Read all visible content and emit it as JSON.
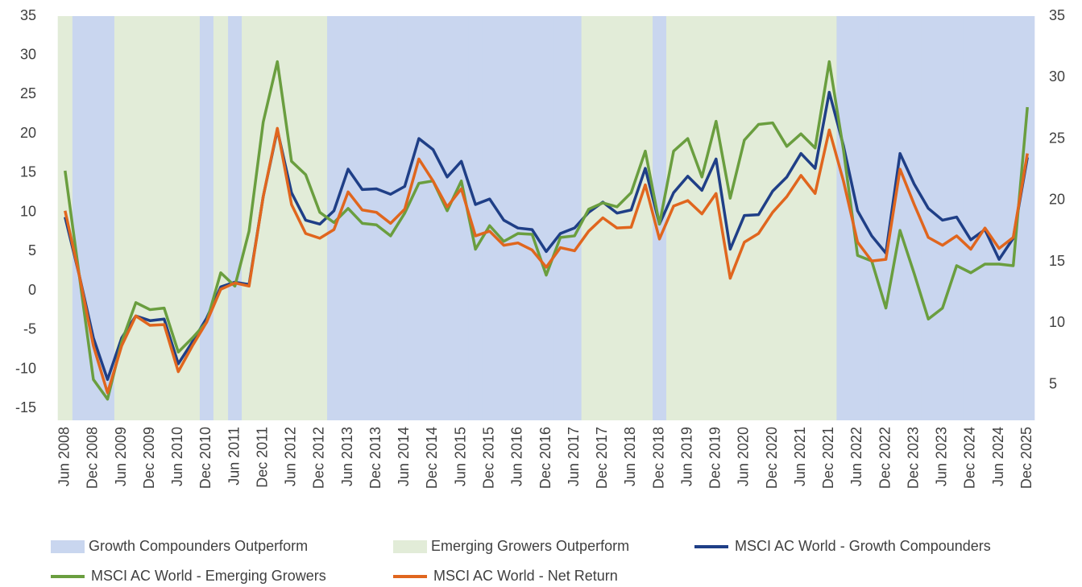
{
  "chart_data": {
    "type": "combo",
    "categories": [
      "Jun 2008",
      null,
      "Dec 2008",
      null,
      "Jun 2009",
      null,
      "Dec 2009",
      null,
      "Jun 2010",
      null,
      "Dec 2010",
      null,
      "Jun 2011",
      null,
      "Dec 2011",
      null,
      "Jun 2012",
      null,
      "Dec 2012",
      null,
      "Jun 2013",
      null,
      "Dec 2013",
      null,
      "Jun 2014",
      null,
      "Dec 2014",
      null,
      "Jun 2015",
      null,
      "Dec 2015",
      null,
      "Jun 2016",
      null,
      "Dec 2016",
      null,
      "Jun 2017",
      null,
      "Dec 2017",
      null,
      "Jun 2018",
      null,
      "Dec 2018",
      null,
      "Jun 2019",
      null,
      "Dec 2019",
      null,
      "Jun 2020",
      null,
      "Dec 2020",
      null,
      "Jun 2021",
      null,
      "Dec 2021",
      null,
      "Jun 2022",
      null,
      "Dec 2022",
      null,
      "Dec 2023",
      null,
      "Jun 2023",
      null,
      "Dec 2024",
      null,
      "Jun 2024",
      null,
      "Dec 2025"
    ],
    "ylim": [
      -16.5,
      35
    ],
    "yticks": [
      -15,
      -10,
      -5,
      0,
      5,
      10,
      15,
      20,
      25,
      30,
      35
    ],
    "y2lim": [
      2.1,
      35
    ],
    "y2ticks": [
      5,
      10,
      15,
      20,
      25,
      30,
      35
    ],
    "series": [
      {
        "name": "Growth Compounders Outperform",
        "type": "bar",
        "axis": "y2",
        "color": "#c9d6ef",
        "values": [
          null,
          35,
          35,
          35,
          null,
          null,
          null,
          null,
          null,
          null,
          35,
          null,
          35,
          null,
          null,
          null,
          null,
          null,
          null,
          35,
          35,
          35,
          35,
          35,
          35,
          35,
          35,
          35,
          35,
          35,
          35,
          35,
          35,
          35,
          35,
          35,
          35,
          null,
          null,
          null,
          null,
          null,
          35,
          null,
          null,
          null,
          null,
          null,
          null,
          null,
          null,
          null,
          null,
          null,
          null,
          35,
          35,
          35,
          35,
          35,
          35,
          35,
          35,
          35,
          35,
          35,
          35,
          35,
          35
        ]
      },
      {
        "name": "Emerging Growers Outperform",
        "type": "bar",
        "axis": "y2",
        "color": "#e2ecd8",
        "values": [
          35,
          null,
          null,
          null,
          35,
          35,
          35,
          35,
          35,
          35,
          null,
          35,
          null,
          35,
          35,
          35,
          35,
          35,
          35,
          null,
          null,
          null,
          null,
          null,
          null,
          null,
          null,
          null,
          null,
          null,
          null,
          null,
          null,
          null,
          null,
          null,
          null,
          35,
          35,
          35,
          35,
          35,
          null,
          35,
          35,
          35,
          35,
          35,
          35,
          35,
          35,
          35,
          35,
          35,
          35,
          null,
          null,
          null,
          null,
          null,
          null,
          null,
          null,
          null,
          null,
          null,
          null,
          null,
          null
        ]
      },
      {
        "name": "MSCI AC World - Growth Compounders",
        "type": "line",
        "color": "#1f3f87",
        "values": [
          9.4,
          2,
          -6,
          -11.3,
          -6,
          -3.2,
          -3.8,
          -3.6,
          -9.3,
          -6.5,
          -3.5,
          0.5,
          1.1,
          0.8,
          12,
          20.5,
          12.5,
          9,
          8.5,
          10.2,
          15.5,
          12.9,
          13,
          12.3,
          13.3,
          19.4,
          18,
          14.5,
          16.5,
          11,
          11.7,
          9,
          8,
          7.8,
          5,
          7.3,
          8,
          10,
          11.3,
          9.9,
          10.3,
          15.6,
          8.5,
          12.5,
          14.6,
          12.8,
          16.8,
          5.3,
          9.6,
          9.7,
          12.7,
          14.5,
          17.5,
          15.6,
          25.3,
          18.5,
          10.2,
          7,
          4.8,
          17.5,
          13.6,
          10.5,
          9,
          9.4,
          6.5,
          7.8,
          4,
          6.7,
          17
        ]
      },
      {
        "name": "MSCI AC World - Emerging Growers",
        "type": "line",
        "color": "#6a9e3f",
        "values": [
          15.3,
          2,
          -11.3,
          -13.8,
          -6.5,
          -1.5,
          -2.4,
          -2.2,
          -7.8,
          -6,
          -4,
          2.3,
          0.6,
          7.6,
          21.5,
          29.2,
          16.5,
          14.8,
          10,
          8.7,
          10.5,
          8.6,
          8.4,
          7,
          9.9,
          13.7,
          14,
          10.2,
          14,
          5.3,
          8.3,
          6.3,
          7.3,
          7.2,
          2,
          6.8,
          7,
          10.4,
          11.2,
          10.7,
          12.5,
          17.8,
          8.5,
          17.8,
          19.4,
          14.5,
          21.6,
          11.8,
          19.2,
          21.2,
          21.4,
          18.4,
          20,
          18.2,
          29.2,
          18,
          4.5,
          3.8,
          -2.2,
          7.7,
          2.2,
          -3.6,
          -2.2,
          3.2,
          2.3,
          3.4,
          3.4,
          3.2,
          23.4
        ]
      },
      {
        "name": "MSCI AC World - Net Return",
        "type": "line",
        "color": "#e0661e",
        "values": [
          10.2,
          2,
          -7,
          -13,
          -7,
          -3.2,
          -4.4,
          -4.3,
          -10.3,
          -7,
          -4,
          0.2,
          1,
          0.6,
          12,
          20.7,
          11,
          7.3,
          6.7,
          7.8,
          12.6,
          10.3,
          10,
          8.6,
          10.4,
          16.8,
          14,
          10.7,
          13,
          7,
          7.6,
          5.8,
          6.1,
          5.2,
          3,
          5.5,
          5.1,
          7.6,
          9.3,
          8,
          8.1,
          13.5,
          6.6,
          10.8,
          11.5,
          9.8,
          12.4,
          1.6,
          6.2,
          7.3,
          10,
          12,
          14.7,
          12.4,
          20.5,
          14,
          6.2,
          3.8,
          4,
          15.5,
          11,
          6.8,
          5.8,
          7,
          5.3,
          8,
          5.4,
          6.8,
          17.5
        ]
      }
    ]
  }
}
